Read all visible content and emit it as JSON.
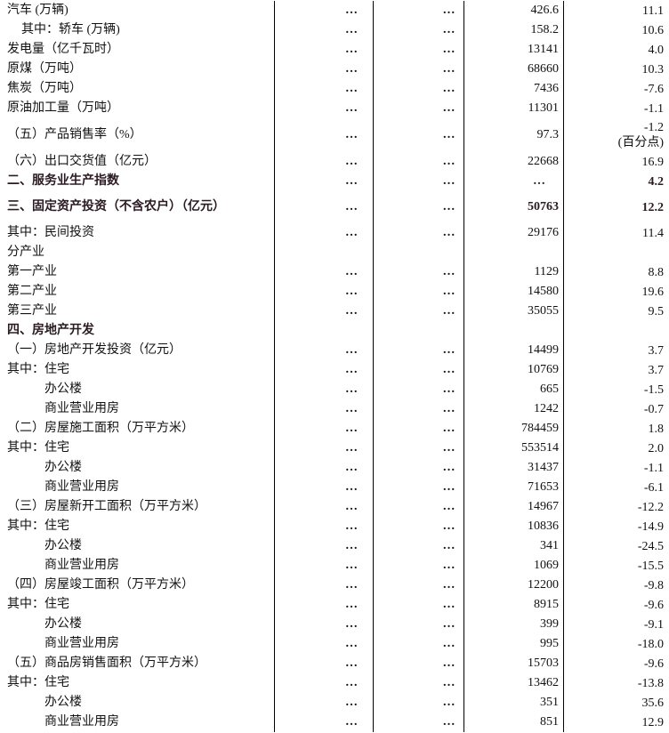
{
  "table": {
    "rows": [
      {
        "label": "汽车 (万辆)",
        "c2": "…",
        "c3": "…",
        "value": "426.6",
        "growth": "11.1"
      },
      {
        "label": "其中：轿车 (万辆)",
        "level": 1,
        "c2": "…",
        "c3": "…",
        "value": "158.2",
        "growth": "10.6"
      },
      {
        "label": "发电量（亿千瓦时）",
        "c2": "…",
        "c3": "…",
        "value": "13141",
        "growth": "4.0"
      },
      {
        "label": "原煤（万吨）",
        "c2": "…",
        "c3": "…",
        "value": "68660",
        "growth": "10.3"
      },
      {
        "label": "焦炭（万吨）",
        "c2": "…",
        "c3": "…",
        "value": "7436",
        "growth": "-7.6"
      },
      {
        "label": "原油加工量（万吨）",
        "c2": "…",
        "c3": "…",
        "value": "11301",
        "growth": "-1.1"
      },
      {
        "label": "（五）产品销售率（%）",
        "c2": "…",
        "c3": "…",
        "value": "97.3",
        "growth": "-1.2",
        "growth_note": "(百分点)",
        "tall": 1
      },
      {
        "label": "（六）出口交货值（亿元）",
        "c2": "…",
        "c3": "…",
        "value": "22668",
        "growth": "16.9"
      },
      {
        "label": "二、服务业生产指数",
        "bold": true,
        "c2": "…",
        "c3": "…",
        "value": "…",
        "growth": "4.2"
      },
      {
        "label": "三、固定资产投资（不含农户）（亿元）",
        "bold": true,
        "c2": "…",
        "c3": "…",
        "value": "50763",
        "growth": "12.2",
        "tall": 2
      },
      {
        "label": "其中：民间投资",
        "c2": "…",
        "c3": "…",
        "value": "29176",
        "growth": "11.4"
      },
      {
        "label": "分产业"
      },
      {
        "label": "第一产业",
        "c2": "…",
        "c3": "…",
        "value": "1129",
        "growth": "8.8"
      },
      {
        "label": "第二产业",
        "c2": "…",
        "c3": "…",
        "value": "14580",
        "growth": "19.6"
      },
      {
        "label": "第三产业",
        "c2": "…",
        "c3": "…",
        "value": "35055",
        "growth": "9.5"
      },
      {
        "label": "四、房地产开发",
        "bold": true
      },
      {
        "label": "（一）房地产开发投资（亿元）",
        "c2": "…",
        "c3": "…",
        "value": "14499",
        "growth": "3.7"
      },
      {
        "label": "其中：住宅",
        "c2": "…",
        "c3": "…",
        "value": "10769",
        "growth": "3.7"
      },
      {
        "label": "办公楼",
        "level": 2,
        "c2": "…",
        "c3": "…",
        "value": "665",
        "growth": "-1.5"
      },
      {
        "label": "商业营业用房",
        "level": 2,
        "c2": "…",
        "c3": "…",
        "value": "1242",
        "growth": "-0.7"
      },
      {
        "label": "（二）房屋施工面积（万平方米）",
        "c2": "…",
        "c3": "…",
        "value": "784459",
        "growth": "1.8"
      },
      {
        "label": "其中：住宅",
        "c2": "…",
        "c3": "…",
        "value": "553514",
        "growth": "2.0"
      },
      {
        "label": "办公楼",
        "level": 2,
        "c2": "…",
        "c3": "…",
        "value": "31437",
        "growth": "-1.1"
      },
      {
        "label": "商业营业用房",
        "level": 2,
        "c2": "…",
        "c3": "…",
        "value": "71653",
        "growth": "-6.1"
      },
      {
        "label": "（三）房屋新开工面积（万平方米）",
        "c2": "…",
        "c3": "…",
        "value": "14967",
        "growth": "-12.2"
      },
      {
        "label": "其中：住宅",
        "c2": "…",
        "c3": "…",
        "value": "10836",
        "growth": "-14.9"
      },
      {
        "label": "办公楼",
        "level": 2,
        "c2": "…",
        "c3": "…",
        "value": "341",
        "growth": "-24.5"
      },
      {
        "label": "商业营业用房",
        "level": 2,
        "c2": "…",
        "c3": "…",
        "value": "1069",
        "growth": "-15.5"
      },
      {
        "label": "（四）房屋竣工面积（万平方米）",
        "c2": "…",
        "c3": "…",
        "value": "12200",
        "growth": "-9.8"
      },
      {
        "label": "其中：住宅",
        "c2": "…",
        "c3": "…",
        "value": "8915",
        "growth": "-9.6"
      },
      {
        "label": "办公楼",
        "level": 2,
        "c2": "…",
        "c3": "…",
        "value": "399",
        "growth": "-9.1"
      },
      {
        "label": "商业营业用房",
        "level": 2,
        "c2": "…",
        "c3": "…",
        "value": "995",
        "growth": "-18.0"
      },
      {
        "label": "（五）商品房销售面积（万平方米）",
        "c2": "…",
        "c3": "…",
        "value": "15703",
        "growth": "-9.6"
      },
      {
        "label": "其中：住宅",
        "c2": "…",
        "c3": "…",
        "value": "13462",
        "growth": "-13.8"
      },
      {
        "label": "办公楼",
        "level": 2,
        "c2": "…",
        "c3": "…",
        "value": "351",
        "growth": "35.6"
      },
      {
        "label": "商业营业用房",
        "level": 2,
        "c2": "…",
        "c3": "…",
        "value": "851",
        "growth": "12.9"
      }
    ]
  }
}
